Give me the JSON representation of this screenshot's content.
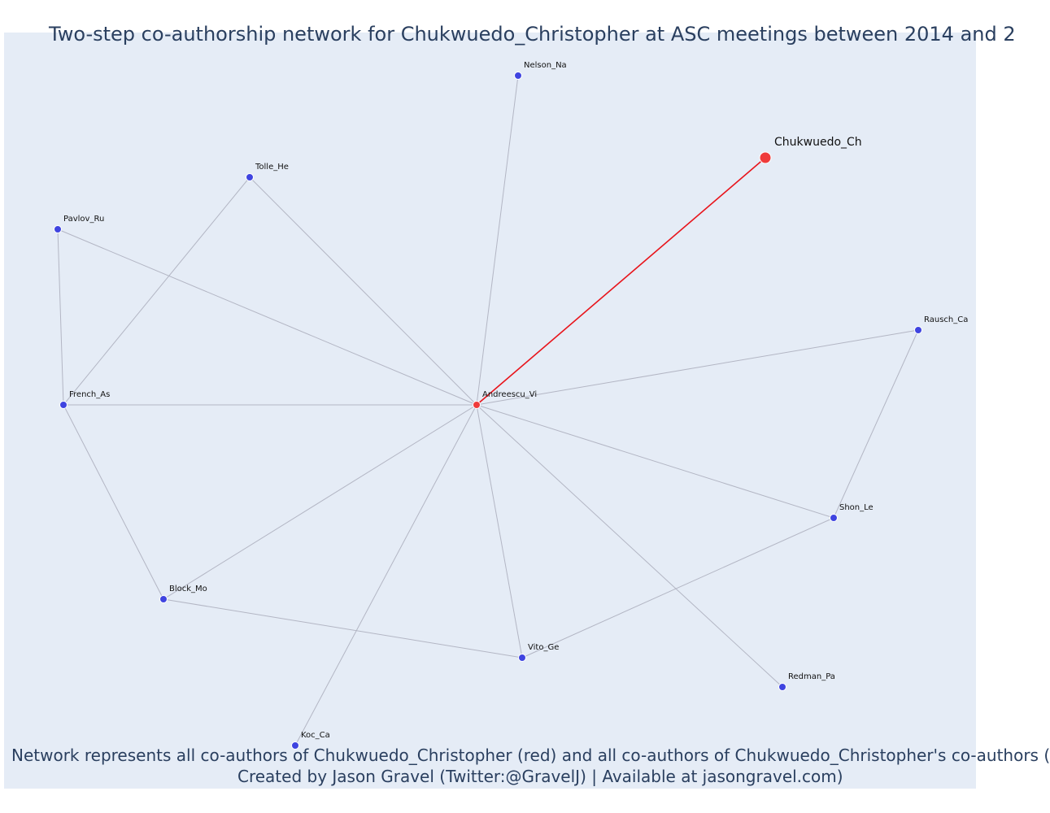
{
  "title": "Two-step co-authorship network for Chukwuedo_Christopher at ASC meetings between 2014 and 2",
  "caption": {
    "line1": "Network represents all co-authors of Chukwuedo_Christopher (red) and all co-authors of Chukwuedo_Christopher's co-authors (",
    "line2": "Created by Jason Gravel (Twitter:@GravelJ) | Available at jasongravel.com)"
  },
  "colors": {
    "plot_background": "#e5ecf6",
    "focal_color": "#ef3b3b",
    "direct_coauthor_color": "#ef3b3b",
    "second_step_color": "#3f44e0",
    "focal_edge_color": "#e8141b",
    "edge_color": "#b3b6c4"
  },
  "network": {
    "focal": "Chukwuedo_Ch",
    "nodes": [
      {
        "id": "Chukwuedo_Ch",
        "label": "Chukwuedo_Ch",
        "role": "focal"
      },
      {
        "id": "Andreescu_Vi",
        "label": "Andreescu_Vi",
        "role": "direct_coauthor"
      },
      {
        "id": "Nelson_Na",
        "label": "Nelson_Na",
        "role": "second_step"
      },
      {
        "id": "Tolle_He",
        "label": "Tolle_He",
        "role": "second_step"
      },
      {
        "id": "Pavlov_Ru",
        "label": "Pavlov_Ru",
        "role": "second_step"
      },
      {
        "id": "French_As",
        "label": "French_As",
        "role": "second_step"
      },
      {
        "id": "Block_Mo",
        "label": "Block_Mo",
        "role": "second_step"
      },
      {
        "id": "Koc_Ca",
        "label": "Koc_Ca",
        "role": "second_step"
      },
      {
        "id": "Vito_Ge",
        "label": "Vito_Ge",
        "role": "second_step"
      },
      {
        "id": "Redman_Pa",
        "label": "Redman_Pa",
        "role": "second_step"
      },
      {
        "id": "Shon_Le",
        "label": "Shon_Le",
        "role": "second_step"
      },
      {
        "id": "Rausch_Ca",
        "label": "Rausch_Ca",
        "role": "second_step"
      }
    ],
    "edges": [
      {
        "source": "Chukwuedo_Ch",
        "target": "Andreescu_Vi",
        "focal": true
      },
      {
        "source": "Andreescu_Vi",
        "target": "Nelson_Na"
      },
      {
        "source": "Andreescu_Vi",
        "target": "Tolle_He"
      },
      {
        "source": "Andreescu_Vi",
        "target": "Pavlov_Ru"
      },
      {
        "source": "Andreescu_Vi",
        "target": "French_As"
      },
      {
        "source": "Andreescu_Vi",
        "target": "Block_Mo"
      },
      {
        "source": "Andreescu_Vi",
        "target": "Koc_Ca"
      },
      {
        "source": "Andreescu_Vi",
        "target": "Vito_Ge"
      },
      {
        "source": "Andreescu_Vi",
        "target": "Redman_Pa"
      },
      {
        "source": "Andreescu_Vi",
        "target": "Shon_Le"
      },
      {
        "source": "Andreescu_Vi",
        "target": "Rausch_Ca"
      },
      {
        "source": "Tolle_He",
        "target": "French_As"
      },
      {
        "source": "Pavlov_Ru",
        "target": "French_As"
      },
      {
        "source": "French_As",
        "target": "Block_Mo"
      },
      {
        "source": "Block_Mo",
        "target": "Vito_Ge"
      },
      {
        "source": "Vito_Ge",
        "target": "Shon_Le"
      },
      {
        "source": "Shon_Le",
        "target": "Rausch_Ca"
      }
    ]
  }
}
